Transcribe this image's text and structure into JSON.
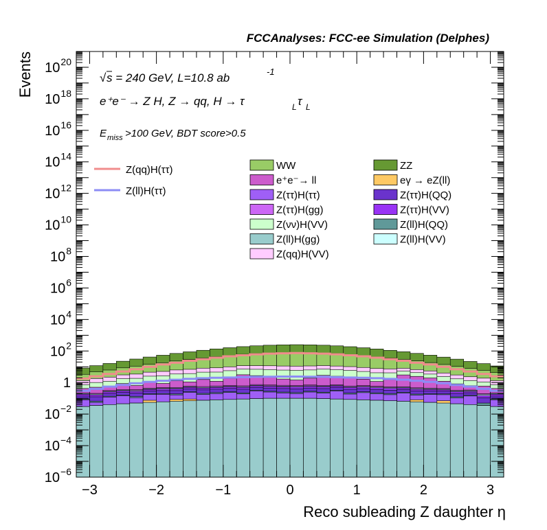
{
  "chart_data": {
    "type": "bar",
    "stacked": true,
    "log_y": true,
    "title": "FCCAnalyses: FCC-ee Simulation (Delphes)",
    "xlabel": "Reco subleading Z daughter η",
    "ylabel": "Events",
    "xlim": [
      -3.2,
      3.2
    ],
    "ylim": [
      1e-06,
      1e+21
    ],
    "x_bins": [
      -3.2,
      -3.0,
      -2.8,
      -2.6,
      -2.4,
      -2.2,
      -2.0,
      -1.8,
      -1.6,
      -1.4,
      -1.2,
      -1.0,
      -0.8,
      -0.6,
      -0.4,
      -0.2,
      0.0,
      0.2,
      0.4,
      0.6,
      0.8,
      1.0,
      1.2,
      1.4,
      1.6,
      1.8,
      2.0,
      2.2,
      2.4,
      2.6,
      2.8,
      3.0,
      3.2
    ],
    "x_ticks": [
      {
        "v": -3,
        "label": "−3"
      },
      {
        "v": -2,
        "label": "−2"
      },
      {
        "v": -1,
        "label": "−1"
      },
      {
        "v": 0,
        "label": "0"
      },
      {
        "v": 1,
        "label": "1"
      },
      {
        "v": 2,
        "label": "2"
      },
      {
        "v": 3,
        "label": "3"
      }
    ],
    "y_ticks": [
      {
        "v": 1e-06,
        "base": "10",
        "exp": "−6"
      },
      {
        "v": 0.0001,
        "base": "10",
        "exp": "−4"
      },
      {
        "v": 0.01,
        "base": "10",
        "exp": "−2"
      },
      {
        "v": 1,
        "base": "1",
        "exp": ""
      },
      {
        "v": 100.0,
        "base": "10",
        "exp": "2"
      },
      {
        "v": 10000.0,
        "base": "10",
        "exp": "4"
      },
      {
        "v": 1000000.0,
        "base": "10",
        "exp": "6"
      },
      {
        "v": 100000000.0,
        "base": "10",
        "exp": "8"
      },
      {
        "v": 10000000000.0,
        "base": "10",
        "exp": "10"
      },
      {
        "v": 1000000000000.0,
        "base": "10",
        "exp": "12"
      },
      {
        "v": 100000000000000.0,
        "base": "10",
        "exp": "14"
      },
      {
        "v": 1e+16,
        "base": "10",
        "exp": "16"
      },
      {
        "v": 1e+18,
        "base": "10",
        "exp": "18"
      },
      {
        "v": 1e+20,
        "base": "10",
        "exp": "20"
      }
    ],
    "annotations": {
      "energy_sqrt": "√",
      "energy_rest": "s = 240 GeV, L=10.8 ab",
      "energy_exp": "-1",
      "process": "e⁺e⁻ → Z H, Z  → qq, H  → τ",
      "process_sub1": "L",
      "process_tau2": "τ",
      "process_sub2": "L",
      "cuts_e": "E",
      "cuts_sub": "miss",
      "cuts_rest": ">100 GeV, BDT score>0.5"
    },
    "signals": [
      {
        "name": "Z(qq)H(ττ)",
        "color": "#f08c8c",
        "values": [
          1.8,
          2.5,
          3.5,
          5,
          7,
          10,
          14,
          18,
          24,
          30,
          38,
          46,
          54,
          62,
          68,
          72,
          74,
          72,
          68,
          62,
          54,
          46,
          38,
          30,
          24,
          18,
          14,
          10,
          7,
          5,
          3.5,
          2.5
        ]
      },
      {
        "name": "Z(ll)H(ττ)",
        "color": "#8c8cf5",
        "values": [
          0.3,
          0.4,
          0.55,
          0.7,
          0.9,
          1.1,
          1.3,
          1.5,
          1.7,
          1.9,
          2.0,
          2.1,
          2.2,
          2.3,
          2.35,
          2.4,
          2.4,
          2.35,
          2.3,
          2.2,
          2.1,
          2.0,
          1.9,
          1.7,
          1.5,
          1.3,
          1.1,
          0.9,
          0.7,
          0.55,
          0.4,
          0.3
        ]
      }
    ],
    "series": [
      {
        "name": "Z(ll)H(gg)",
        "color": "#99cccc",
        "values": [
          0.03,
          0.035,
          0.04,
          0.045,
          0.05,
          0.055,
          0.06,
          0.065,
          0.07,
          0.075,
          0.08,
          0.085,
          0.09,
          0.095,
          0.1,
          0.1,
          0.1,
          0.1,
          0.095,
          0.09,
          0.085,
          0.08,
          0.075,
          0.07,
          0.065,
          0.06,
          0.055,
          0.05,
          0.045,
          0.04,
          0.035,
          0.03
        ]
      },
      {
        "name": "eγ → eZ(ll)",
        "color": "#fec964",
        "values": [
          0,
          0,
          0,
          0,
          0,
          0.02,
          0,
          0.02,
          0.02,
          0,
          0,
          0,
          0,
          0,
          0,
          0,
          0,
          0,
          0,
          0,
          0,
          0,
          0,
          0,
          0,
          0.02,
          0,
          0.02,
          0,
          0,
          0,
          0
        ]
      },
      {
        "name": "Z(ττ)H(ττ)",
        "color": "#9f5ff6",
        "values": [
          0.05,
          0.02,
          0.08,
          0.1,
          0.06,
          0.1,
          0.12,
          0.08,
          0.15,
          0.1,
          0.12,
          0.15,
          0.1,
          0.2,
          0.15,
          0.12,
          0.1,
          0.15,
          0.12,
          0.2,
          0.1,
          0.15,
          0.12,
          0.1,
          0.15,
          0.08,
          0.12,
          0.1,
          0.06,
          0.1,
          1e-06,
          0.05
        ]
      },
      {
        "name": "Z(ll)H(QQ)",
        "color": "#609999",
        "values": [
          0.01,
          0.01,
          0.015,
          0.015,
          0.02,
          0.02,
          0.02,
          0.025,
          0.025,
          0.03,
          0.03,
          0.03,
          0.03,
          0.03,
          0.03,
          0.03,
          0.03,
          0.03,
          0.03,
          0.03,
          0.03,
          0.03,
          0.03,
          0.03,
          0.025,
          0.025,
          0.02,
          0.02,
          0.02,
          0.015,
          0.015,
          0.01
        ]
      },
      {
        "name": "Z(ττ)H(QQ)",
        "color": "#6a33cc",
        "values": [
          0.05,
          0.06,
          0.07,
          0.08,
          0.09,
          0.1,
          0.11,
          0.12,
          0.13,
          0.14,
          0.15,
          0.16,
          0.16,
          0.17,
          0.17,
          0.17,
          0.17,
          0.17,
          0.17,
          0.16,
          0.16,
          0.15,
          0.14,
          0.13,
          0.12,
          0.11,
          0.1,
          0.09,
          0.08,
          0.07,
          0.06,
          0.05
        ]
      },
      {
        "name": "Z(ττ)H(VV)",
        "color": "#9933f5",
        "values": [
          0.04,
          0.04,
          0.05,
          0.06,
          0.06,
          0.07,
          0.08,
          0.09,
          0.1,
          0.1,
          0.11,
          0.11,
          0.12,
          0.12,
          0.12,
          0.12,
          0.12,
          0.12,
          0.12,
          0.12,
          0.11,
          0.11,
          0.1,
          0.1,
          0.09,
          0.08,
          0.07,
          0.06,
          0.06,
          0.05,
          0.04,
          0.04
        ]
      },
      {
        "name": "Z(ll)H(VV)",
        "color": "#ccffff",
        "values": [
          0.02,
          0.02,
          0.025,
          0.03,
          0.03,
          0.035,
          0.04,
          0.04,
          0.045,
          0.05,
          0.05,
          0.05,
          0.05,
          0.05,
          0.05,
          0.05,
          0.05,
          0.05,
          0.05,
          0.05,
          0.05,
          0.05,
          0.05,
          0.05,
          0.045,
          0.04,
          0.04,
          0.035,
          0.03,
          0.03,
          0.025,
          0.02
        ]
      },
      {
        "name": "Z(ττ)H(gg)",
        "color": "#cc66f5",
        "values": [
          0.02,
          0.02,
          0.03,
          0.03,
          0.04,
          0.04,
          0.05,
          0.05,
          0.06,
          0.06,
          0.07,
          0.07,
          0.07,
          0.08,
          0.08,
          0.08,
          0.08,
          0.08,
          0.08,
          0.07,
          0.07,
          0.07,
          0.06,
          0.06,
          0.05,
          0.05,
          0.04,
          0.04,
          0.03,
          0.03,
          0.02,
          0.02
        ]
      },
      {
        "name": "e⁺e⁻→ ll",
        "color": "#cc5ccc",
        "values": [
          0.2,
          0.3,
          0.2,
          0.5,
          0.3,
          0.6,
          0.4,
          0.8,
          0.5,
          1.0,
          0.6,
          1.2,
          2.5,
          2.0,
          1.5,
          1.0,
          0.8,
          1.2,
          2.2,
          1.8,
          1.5,
          1.0,
          0.6,
          1.0,
          2.5,
          2.0,
          1.5,
          0.8,
          0.5,
          0.3,
          0.4,
          0.2
        ]
      },
      {
        "name": "Z(νν)H(VV)",
        "color": "#ccffcc",
        "values": [
          0.3,
          0.5,
          0.7,
          0.9,
          1.2,
          1.5,
          1.8,
          2.2,
          2.6,
          3.0,
          3.4,
          3.8,
          4.0,
          4.2,
          4.4,
          4.5,
          4.5,
          4.4,
          4.2,
          4.0,
          3.8,
          3.4,
          3.0,
          2.6,
          2.2,
          1.8,
          1.5,
          1.2,
          0.9,
          0.7,
          0.5,
          0.3
        ]
      },
      {
        "name": "Z(qq)H(VV)",
        "color": "#ffccff",
        "values": [
          0.6,
          0.8,
          1.0,
          1.3,
          1.6,
          2.0,
          2.4,
          2.8,
          3.2,
          3.6,
          4.0,
          4.3,
          4.6,
          4.8,
          5.0,
          5.0,
          5.0,
          5.0,
          4.8,
          4.6,
          4.3,
          4.0,
          3.6,
          3.2,
          2.8,
          2.4,
          2.0,
          1.6,
          1.3,
          1.0,
          0.8,
          0.6
        ]
      },
      {
        "name": "WW",
        "color": "#99cc66",
        "values": [
          2,
          3,
          4,
          5.5,
          7.5,
          10,
          13,
          17,
          22,
          28,
          35,
          42,
          50,
          57,
          62,
          65,
          66,
          65,
          62,
          57,
          50,
          42,
          35,
          28,
          22,
          17,
          13,
          10,
          7.5,
          5.5,
          4,
          3
        ]
      },
      {
        "name": "ZZ",
        "color": "#669933",
        "values": [
          5,
          7,
          10,
          14,
          20,
          27,
          36,
          47,
          60,
          75,
          92,
          110,
          128,
          145,
          160,
          170,
          175,
          170,
          160,
          145,
          128,
          110,
          92,
          75,
          60,
          47,
          36,
          27,
          20,
          14,
          10,
          7
        ]
      }
    ],
    "legend_columns": [
      [
        "WW",
        "e⁺e⁻→ ll",
        "Z(ττ)H(ττ)",
        "Z(ττ)H(gg)",
        "Z(νν)H(VV)",
        "Z(ll)H(gg)",
        "Z(qq)H(VV)"
      ],
      [
        "ZZ",
        "eγ → eZ(ll)",
        "Z(ττ)H(QQ)",
        "Z(ττ)H(VV)",
        "Z(ll)H(QQ)",
        "Z(ll)H(VV)"
      ]
    ]
  }
}
